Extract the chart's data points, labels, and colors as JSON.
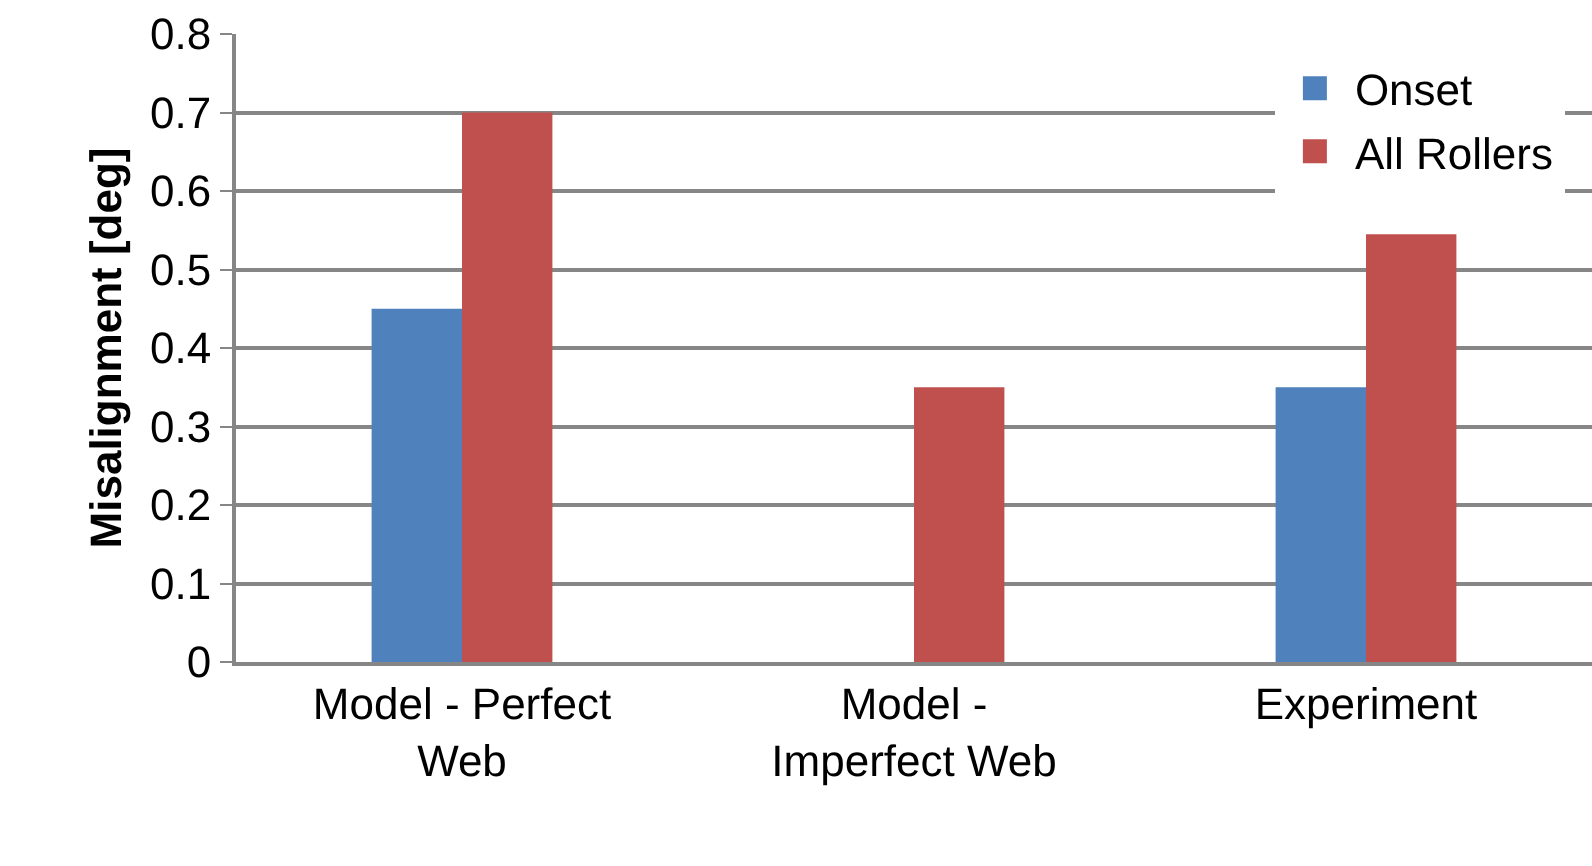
{
  "chart_data": {
    "type": "bar",
    "ylabel": "Misalignment [deg]",
    "categories": [
      "Model - Perfect Web",
      "Model - Imperfect Web",
      "Experiment"
    ],
    "series": [
      {
        "name": "Onset",
        "color": "#4f81bd",
        "values": [
          0.45,
          null,
          0.35
        ]
      },
      {
        "name": "All Rollers",
        "color": "#c0504d",
        "values": [
          0.7,
          0.35,
          0.545
        ]
      }
    ],
    "ylim": [
      0,
      0.8
    ],
    "yticks": [
      0,
      0.1,
      0.2,
      0.3,
      0.4,
      0.5,
      0.6,
      0.7,
      0.8
    ],
    "grid": "y",
    "legend": "top right"
  }
}
